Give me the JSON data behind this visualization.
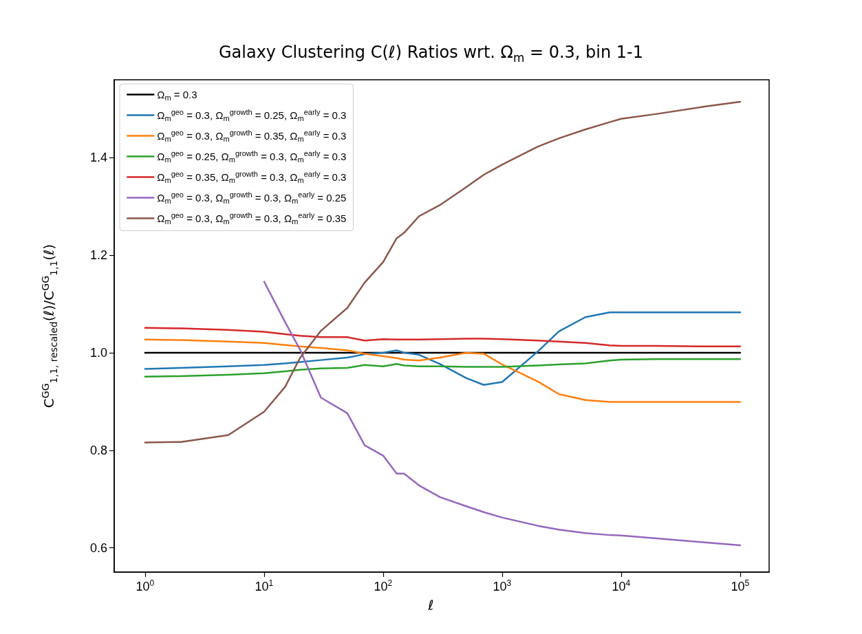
{
  "chart_data": {
    "type": "line",
    "title": "Galaxy Clustering C(ℓ) Ratios wrt. Ω$_{m}$ = 0.3, bin 1-1",
    "xlabel": "ℓ",
    "ylabel": "C$^{GG}$$_{1,1, rescaled}$(ℓ)/C$^{GG}$$_{1,1}$(ℓ)",
    "log": "x",
    "grid": false,
    "legend": "top left",
    "marker": "none",
    "line_style": "solid",
    "xlim": [
      0.55,
      175000
    ],
    "xticks": [
      {
        "value": 1,
        "label": "10$^{0}$"
      },
      {
        "value": 10,
        "label": "10$^{1}$"
      },
      {
        "value": 100,
        "label": "10$^{2}$"
      },
      {
        "value": 1000,
        "label": "10$^{3}$"
      },
      {
        "value": 10000,
        "label": "10$^{4}$"
      },
      {
        "value": 100000,
        "label": "10$^{5}$"
      }
    ],
    "ylim": [
      0.55,
      1.56
    ],
    "yticks": [
      0.6,
      0.8,
      {
        "value": 1,
        "label": "1.0"
      },
      1.2,
      1.4
    ],
    "x": [
      1,
      2,
      5,
      10,
      15,
      20,
      30,
      50,
      70,
      100,
      130,
      150,
      200,
      300,
      500,
      700,
      1000,
      2000,
      3000,
      5000,
      8000,
      10000,
      20000,
      50000,
      100000
    ],
    "series": [
      {
        "name": "Ω$_{m}$ = 0.3",
        "color": "#000000",
        "values": [
          1,
          1,
          1,
          1,
          1,
          1,
          1,
          1,
          1,
          1,
          1,
          1,
          1,
          1,
          1,
          1,
          1,
          1,
          1,
          1,
          1,
          1,
          1,
          1,
          1
        ]
      },
      {
        "name": "Ω$_{m}$$^{geo}$ = 0.3, Ω$_{m}$$^{growth}$ = 0.25, Ω$_{m}$$^{early}$ = 0.3",
        "color": "#1f77b4",
        "values": [
          0.967,
          0.969,
          0.972,
          0.975,
          0.978,
          0.981,
          0.985,
          0.99,
          0.997,
          1.0,
          1.005,
          1.0,
          0.996,
          0.977,
          0.948,
          0.934,
          0.94,
          1.003,
          1.044,
          1.073,
          1.083,
          1.083,
          1.083,
          1.083,
          1.083
        ]
      },
      {
        "name": "Ω$_{m}$$^{geo}$ = 0.3, Ω$_{m}$$^{growth}$ = 0.35, Ω$_{m}$$^{early}$ = 0.3",
        "color": "#ff7f0e",
        "values": [
          1.027,
          1.026,
          1.023,
          1.02,
          1.016,
          1.013,
          1.01,
          1.005,
          0.998,
          0.993,
          0.989,
          0.986,
          0.984,
          0.99,
          1.0,
          0.998,
          0.976,
          0.941,
          0.915,
          0.903,
          0.899,
          0.899,
          0.899,
          0.899,
          0.899
        ]
      },
      {
        "name": "Ω$_{m}$$^{geo}$ = 0.25, Ω$_{m}$$^{growth}$ = 0.3, Ω$_{m}$$^{early}$ = 0.3",
        "color": "#2ca02c",
        "values": [
          0.951,
          0.952,
          0.955,
          0.958,
          0.962,
          0.965,
          0.968,
          0.969,
          0.975,
          0.972,
          0.977,
          0.974,
          0.972,
          0.972,
          0.971,
          0.971,
          0.971,
          0.974,
          0.976,
          0.978,
          0.984,
          0.986,
          0.987,
          0.987,
          0.987
        ]
      },
      {
        "name": "Ω$_{m}$$^{geo}$ = 0.35, Ω$_{m}$$^{growth}$ = 0.3, Ω$_{m}$$^{early}$ = 0.3",
        "color": "#d62728",
        "values": [
          1.051,
          1.05,
          1.047,
          1.043,
          1.038,
          1.035,
          1.032,
          1.032,
          1.025,
          1.028,
          1.027,
          1.027,
          1.027,
          1.028,
          1.029,
          1.029,
          1.028,
          1.025,
          1.023,
          1.02,
          1.015,
          1.014,
          1.014,
          1.013,
          1.013
        ]
      },
      {
        "name": "Ω$_{m}$$^{geo}$ = 0.3, Ω$_{m}$$^{growth}$ = 0.3, Ω$_{m}$$^{early}$ = 0.25",
        "color": "#9467bd",
        "values": [
          null,
          null,
          null,
          1.146,
          1.063,
          1.007,
          0.908,
          0.876,
          0.81,
          0.789,
          0.752,
          0.752,
          0.728,
          0.704,
          0.685,
          0.673,
          0.662,
          0.645,
          0.637,
          0.63,
          0.626,
          0.625,
          0.619,
          0.611,
          0.605
        ]
      },
      {
        "name": "Ω$_{m}$$^{geo}$ = 0.3, Ω$_{m}$$^{growth}$ = 0.3, Ω$_{m}$$^{early}$ = 0.35",
        "color": "#8c564b",
        "values": [
          0.816,
          0.817,
          0.831,
          0.879,
          0.93,
          0.989,
          1.045,
          1.092,
          1.144,
          1.186,
          1.235,
          1.246,
          1.28,
          1.303,
          1.34,
          1.365,
          1.386,
          1.423,
          1.44,
          1.458,
          1.473,
          1.48,
          1.49,
          1.505,
          1.515
        ]
      }
    ]
  }
}
